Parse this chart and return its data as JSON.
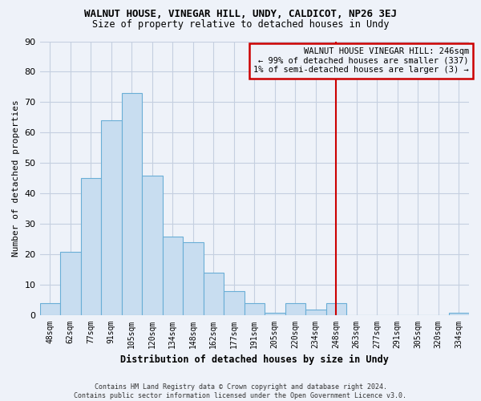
{
  "title": "WALNUT HOUSE, VINEGAR HILL, UNDY, CALDICOT, NP26 3EJ",
  "subtitle": "Size of property relative to detached houses in Undy",
  "xlabel": "Distribution of detached houses by size in Undy",
  "ylabel": "Number of detached properties",
  "footnote1": "Contains HM Land Registry data © Crown copyright and database right 2024.",
  "footnote2": "Contains public sector information licensed under the Open Government Licence v3.0.",
  "categories": [
    "48sqm",
    "62sqm",
    "77sqm",
    "91sqm",
    "105sqm",
    "120sqm",
    "134sqm",
    "148sqm",
    "162sqm",
    "177sqm",
    "191sqm",
    "205sqm",
    "220sqm",
    "234sqm",
    "248sqm",
    "263sqm",
    "277sqm",
    "291sqm",
    "305sqm",
    "320sqm",
    "334sqm"
  ],
  "values": [
    4,
    21,
    45,
    64,
    73,
    46,
    26,
    24,
    14,
    8,
    4,
    1,
    4,
    2,
    4,
    0,
    0,
    0,
    0,
    0,
    1
  ],
  "highlight_index": 14,
  "highlight_label": "WALNUT HOUSE VINEGAR HILL: 246sqm",
  "highlight_line1": "← 99% of detached houses are smaller (337)",
  "highlight_line2": "1% of semi-detached houses are larger (3) →",
  "bar_color_normal": "#c8ddf0",
  "bar_edge_color": "#6aaed6",
  "highlight_vline_color": "#cc0000",
  "annotation_box_edgecolor": "#cc0000",
  "background_color": "#eef2f9",
  "grid_color": "#d0d8e8",
  "ylim": [
    0,
    90
  ],
  "yticks": [
    0,
    10,
    20,
    30,
    40,
    50,
    60,
    70,
    80,
    90
  ]
}
